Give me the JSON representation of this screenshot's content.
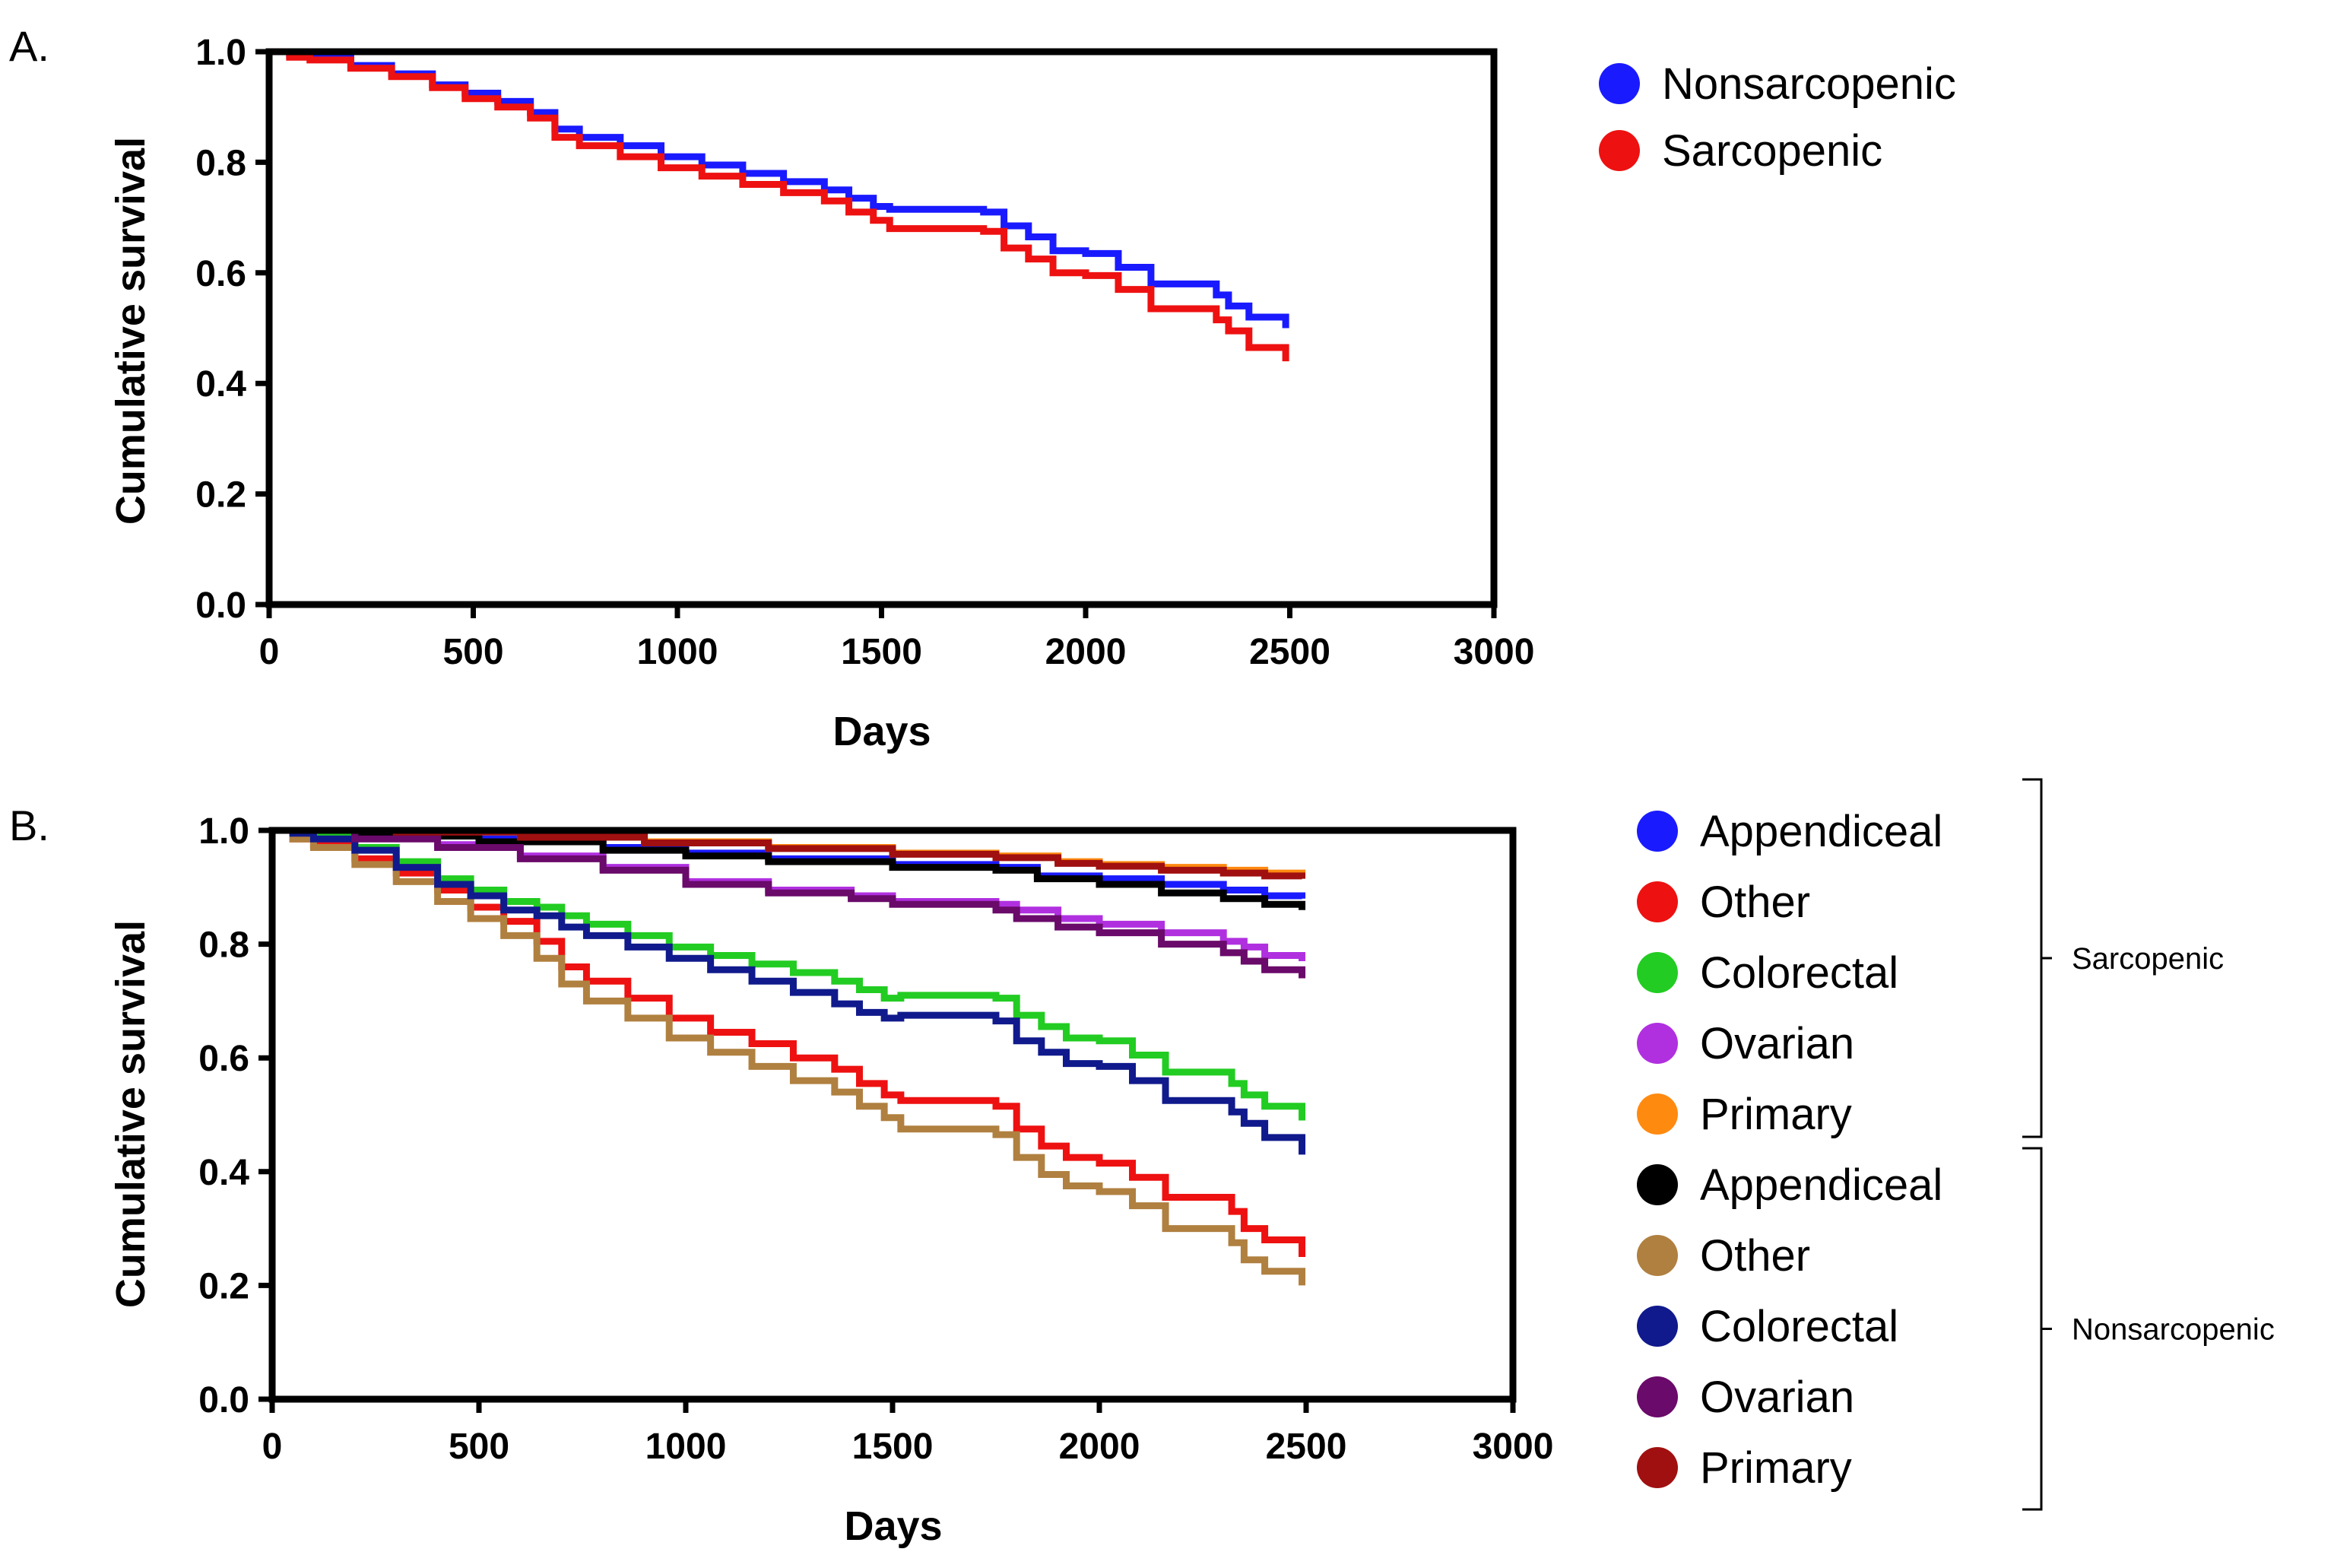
{
  "chart_data": [
    {
      "panel": "A.",
      "type": "line",
      "xlabel": "Days",
      "ylabel": "Cumulative survival",
      "xlim": [
        0,
        3000
      ],
      "ylim": [
        0,
        1
      ],
      "xticks": [
        "0",
        "500",
        "1000",
        "1500",
        "2000",
        "2500",
        "3000"
      ],
      "yticks": [
        "0.0",
        "0.2",
        "0.4",
        "0.6",
        "0.8",
        "1.0"
      ],
      "legend_position": "right",
      "series": [
        {
          "name": "Nonsarcopenic",
          "color": "#1a1aff",
          "x": [
            0,
            50,
            100,
            200,
            300,
            400,
            480,
            560,
            640,
            700,
            760,
            860,
            960,
            1060,
            1160,
            1260,
            1360,
            1420,
            1480,
            1520,
            1600,
            1680,
            1750,
            1800,
            1860,
            1920,
            2000,
            2080,
            2160,
            2240,
            2320,
            2350,
            2400,
            2490
          ],
          "y": [
            1.0,
            0.995,
            0.99,
            0.975,
            0.96,
            0.94,
            0.925,
            0.91,
            0.89,
            0.86,
            0.845,
            0.83,
            0.81,
            0.795,
            0.78,
            0.765,
            0.75,
            0.735,
            0.72,
            0.715,
            0.715,
            0.715,
            0.71,
            0.685,
            0.665,
            0.64,
            0.635,
            0.61,
            0.58,
            0.58,
            0.56,
            0.54,
            0.52,
            0.5
          ]
        },
        {
          "name": "Sarcopenic",
          "color": "#ee1111",
          "x": [
            0,
            50,
            100,
            200,
            300,
            400,
            480,
            560,
            640,
            700,
            760,
            860,
            960,
            1060,
            1160,
            1260,
            1360,
            1420,
            1480,
            1520,
            1600,
            1680,
            1750,
            1800,
            1860,
            1920,
            2000,
            2080,
            2160,
            2240,
            2320,
            2350,
            2400,
            2490
          ],
          "y": [
            1.0,
            0.99,
            0.985,
            0.97,
            0.955,
            0.935,
            0.915,
            0.9,
            0.88,
            0.845,
            0.83,
            0.81,
            0.79,
            0.775,
            0.76,
            0.745,
            0.73,
            0.71,
            0.695,
            0.68,
            0.68,
            0.68,
            0.675,
            0.645,
            0.625,
            0.6,
            0.595,
            0.57,
            0.535,
            0.535,
            0.515,
            0.495,
            0.465,
            0.44
          ]
        }
      ]
    },
    {
      "panel": "B.",
      "type": "line",
      "xlabel": "Days",
      "ylabel": "Cumulative survival",
      "xlim": [
        0,
        3000
      ],
      "ylim": [
        0,
        1
      ],
      "xticks": [
        "0",
        "500",
        "1000",
        "1500",
        "2000",
        "2500",
        "3000"
      ],
      "yticks": [
        "0.0",
        "0.2",
        "0.4",
        "0.6",
        "0.8",
        "1.0"
      ],
      "legend_position": "right",
      "groups": [
        {
          "name": "Sarcopenic",
          "members": [
            "Appendiceal",
            "Other",
            "Colorectal",
            "Ovarian",
            "Primary"
          ]
        },
        {
          "name": "Nonsarcopenic",
          "members": [
            "Appendiceal",
            "Other",
            "Colorectal",
            "Ovarian",
            "Primary"
          ]
        }
      ],
      "series": [
        {
          "name": "Appendiceal",
          "color": "#1a1aff",
          "x": [
            0,
            200,
            500,
            800,
            1000,
            1200,
            1500,
            1750,
            1850,
            2000,
            2150,
            2300,
            2400,
            2490
          ],
          "y": [
            1.0,
            0.995,
            0.985,
            0.97,
            0.96,
            0.95,
            0.94,
            0.935,
            0.92,
            0.915,
            0.905,
            0.895,
            0.885,
            0.88
          ]
        },
        {
          "name": "Other",
          "color": "#ee1111",
          "x": [
            0,
            50,
            100,
            200,
            300,
            400,
            480,
            560,
            640,
            700,
            760,
            860,
            960,
            1060,
            1160,
            1260,
            1360,
            1420,
            1480,
            1520,
            1600,
            1680,
            1750,
            1800,
            1860,
            1920,
            2000,
            2080,
            2160,
            2240,
            2320,
            2350,
            2400,
            2490
          ],
          "y": [
            1.0,
            0.985,
            0.975,
            0.95,
            0.925,
            0.895,
            0.865,
            0.84,
            0.805,
            0.76,
            0.735,
            0.705,
            0.67,
            0.645,
            0.625,
            0.6,
            0.58,
            0.555,
            0.535,
            0.525,
            0.525,
            0.525,
            0.515,
            0.475,
            0.445,
            0.425,
            0.415,
            0.39,
            0.355,
            0.355,
            0.33,
            0.3,
            0.28,
            0.25
          ]
        },
        {
          "name": "Colorectal",
          "color": "#22cc22",
          "x": [
            0,
            50,
            100,
            200,
            300,
            400,
            480,
            560,
            640,
            700,
            760,
            860,
            960,
            1060,
            1160,
            1260,
            1360,
            1420,
            1480,
            1520,
            1600,
            1680,
            1750,
            1800,
            1860,
            1920,
            2000,
            2080,
            2160,
            2240,
            2320,
            2350,
            2400,
            2490
          ],
          "y": [
            1.0,
            0.995,
            0.99,
            0.97,
            0.945,
            0.915,
            0.895,
            0.875,
            0.865,
            0.85,
            0.835,
            0.815,
            0.795,
            0.78,
            0.765,
            0.75,
            0.735,
            0.72,
            0.705,
            0.71,
            0.71,
            0.71,
            0.705,
            0.675,
            0.655,
            0.635,
            0.63,
            0.605,
            0.575,
            0.575,
            0.555,
            0.535,
            0.515,
            0.49
          ]
        },
        {
          "name": "Ovarian",
          "color": "#b030e0",
          "x": [
            0,
            200,
            400,
            600,
            800,
            1000,
            1200,
            1400,
            1500,
            1750,
            1800,
            1900,
            2000,
            2150,
            2300,
            2350,
            2400,
            2490
          ],
          "y": [
            1.0,
            0.99,
            0.975,
            0.955,
            0.935,
            0.91,
            0.895,
            0.885,
            0.875,
            0.87,
            0.86,
            0.845,
            0.835,
            0.82,
            0.805,
            0.795,
            0.78,
            0.77
          ]
        },
        {
          "name": "Primary",
          "color": "#ff8a10",
          "x": [
            0,
            300,
            600,
            900,
            1200,
            1500,
            1750,
            1900,
            2000,
            2150,
            2300,
            2400,
            2490
          ],
          "y": [
            1.0,
            0.998,
            0.99,
            0.98,
            0.97,
            0.96,
            0.955,
            0.945,
            0.94,
            0.935,
            0.93,
            0.925,
            0.92
          ]
        },
        {
          "name": "Appendiceal",
          "color": "#000000",
          "x": [
            0,
            200,
            500,
            800,
            1000,
            1200,
            1500,
            1750,
            1850,
            2000,
            2150,
            2300,
            2400,
            2490
          ],
          "y": [
            1.0,
            0.99,
            0.98,
            0.965,
            0.955,
            0.945,
            0.935,
            0.93,
            0.915,
            0.905,
            0.89,
            0.88,
            0.87,
            0.86
          ]
        },
        {
          "name": "Other",
          "color": "#b08040",
          "x": [
            0,
            50,
            100,
            200,
            300,
            400,
            480,
            560,
            640,
            700,
            760,
            860,
            960,
            1060,
            1160,
            1260,
            1360,
            1420,
            1480,
            1520,
            1600,
            1680,
            1750,
            1800,
            1860,
            1920,
            2000,
            2080,
            2160,
            2240,
            2320,
            2350,
            2400,
            2490
          ],
          "y": [
            1.0,
            0.985,
            0.97,
            0.94,
            0.91,
            0.875,
            0.845,
            0.815,
            0.775,
            0.73,
            0.7,
            0.67,
            0.635,
            0.61,
            0.585,
            0.56,
            0.54,
            0.515,
            0.495,
            0.475,
            0.475,
            0.475,
            0.465,
            0.425,
            0.395,
            0.375,
            0.365,
            0.34,
            0.3,
            0.3,
            0.275,
            0.245,
            0.225,
            0.2
          ]
        },
        {
          "name": "Colorectal",
          "color": "#101a8c",
          "x": [
            0,
            50,
            100,
            200,
            300,
            400,
            480,
            560,
            640,
            700,
            760,
            860,
            960,
            1060,
            1160,
            1260,
            1360,
            1420,
            1480,
            1520,
            1600,
            1680,
            1750,
            1800,
            1860,
            1920,
            2000,
            2080,
            2160,
            2240,
            2320,
            2350,
            2400,
            2490
          ],
          "y": [
            1.0,
            0.995,
            0.985,
            0.965,
            0.935,
            0.905,
            0.885,
            0.86,
            0.85,
            0.83,
            0.815,
            0.795,
            0.775,
            0.755,
            0.735,
            0.715,
            0.695,
            0.68,
            0.67,
            0.675,
            0.675,
            0.675,
            0.665,
            0.63,
            0.61,
            0.59,
            0.585,
            0.56,
            0.525,
            0.525,
            0.505,
            0.485,
            0.46,
            0.43
          ]
        },
        {
          "name": "Ovarian",
          "color": "#6a0a6a",
          "x": [
            0,
            200,
            400,
            600,
            800,
            1000,
            1200,
            1400,
            1500,
            1750,
            1800,
            1900,
            2000,
            2150,
            2300,
            2350,
            2400,
            2490
          ],
          "y": [
            1.0,
            0.985,
            0.97,
            0.95,
            0.93,
            0.905,
            0.89,
            0.88,
            0.87,
            0.86,
            0.845,
            0.83,
            0.82,
            0.8,
            0.785,
            0.77,
            0.755,
            0.74
          ]
        },
        {
          "name": "Primary",
          "color": "#a01010",
          "x": [
            0,
            300,
            600,
            900,
            1200,
            1500,
            1750,
            1900,
            2000,
            2150,
            2300,
            2400,
            2490
          ],
          "y": [
            1.0,
            0.997,
            0.988,
            0.978,
            0.968,
            0.958,
            0.952,
            0.942,
            0.937,
            0.93,
            0.925,
            0.92,
            0.915
          ]
        }
      ]
    }
  ]
}
